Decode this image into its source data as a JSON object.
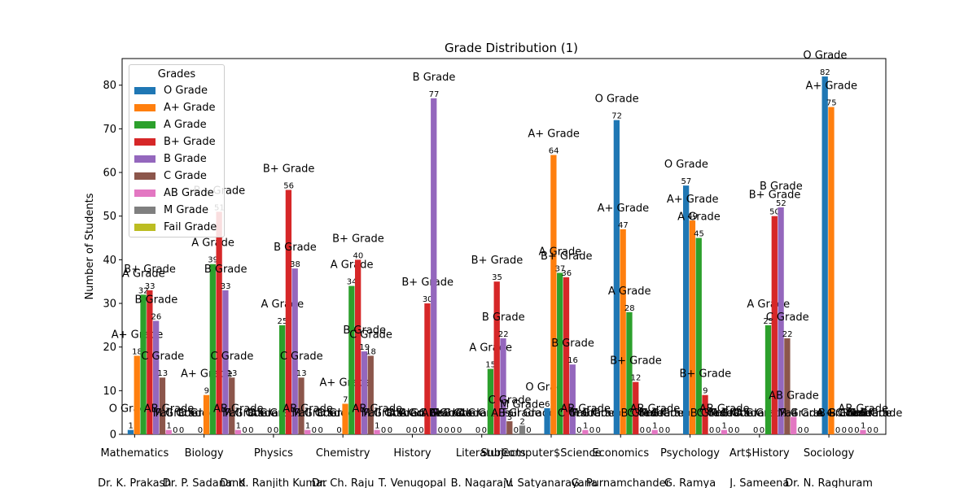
{
  "chart_data": {
    "type": "bar",
    "title": "Grade Distribution (1)",
    "xlabel": "Subjects",
    "ylabel": "Number of Students",
    "ylim": [
      0,
      86.1
    ],
    "yticks": [
      0,
      10,
      20,
      30,
      40,
      50,
      60,
      70,
      80
    ],
    "legend_title": "Grades",
    "legend_position": "top-left",
    "categories": [
      "Mathematics",
      "Biology",
      "Physics",
      "Chemistry",
      "History",
      "Literature",
      "Computer$Science",
      "Economics",
      "Psychology",
      "Art$History",
      "Sociology"
    ],
    "teachers": [
      "Dr. K. Prakash",
      "Dr. P. Sadanand",
      "Dr. K. Ranjith Kumar",
      "Dr. Ch. Raju",
      "T. Venugopal",
      "B. Nagaraju",
      "V. Satyanarayana",
      "G. Purnamchander",
      "G. Ramya",
      "J. Sameena",
      "Dr. N. Raghuram"
    ],
    "series": [
      {
        "name": "O Grade",
        "color": "#1f77b4",
        "values": [
          1,
          0,
          0,
          0,
          0,
          0,
          6,
          72,
          57,
          0,
          82
        ]
      },
      {
        "name": "A+ Grade",
        "color": "#ff7f0e",
        "values": [
          18,
          9,
          0,
          7,
          0,
          0,
          64,
          47,
          49,
          0,
          75
        ]
      },
      {
        "name": "A Grade",
        "color": "#2ca02c",
        "values": [
          32,
          39,
          25,
          34,
          0,
          15,
          37,
          28,
          45,
          25,
          0
        ]
      },
      {
        "name": "B+ Grade",
        "color": "#d62728",
        "values": [
          33,
          51,
          56,
          40,
          30,
          35,
          36,
          12,
          9,
          50,
          0
        ]
      },
      {
        "name": "B Grade",
        "color": "#9467bd",
        "values": [
          26,
          33,
          38,
          19,
          77,
          22,
          16,
          0,
          0,
          52,
          0
        ]
      },
      {
        "name": "C Grade",
        "color": "#8c564b",
        "values": [
          13,
          13,
          13,
          18,
          0,
          3,
          0,
          0,
          0,
          22,
          0
        ]
      },
      {
        "name": "AB Grade",
        "color": "#e377c2",
        "values": [
          1,
          1,
          1,
          1,
          0,
          0,
          1,
          1,
          1,
          4,
          1
        ]
      },
      {
        "name": "M Grade",
        "color": "#7f7f7f",
        "values": [
          0,
          0,
          0,
          0,
          0,
          2,
          0,
          0,
          0,
          0,
          0
        ]
      },
      {
        "name": "Fail Grade",
        "color": "#bcbd22",
        "values": [
          0,
          0,
          0,
          0,
          0,
          0,
          0,
          0,
          0,
          0,
          0
        ]
      }
    ]
  }
}
